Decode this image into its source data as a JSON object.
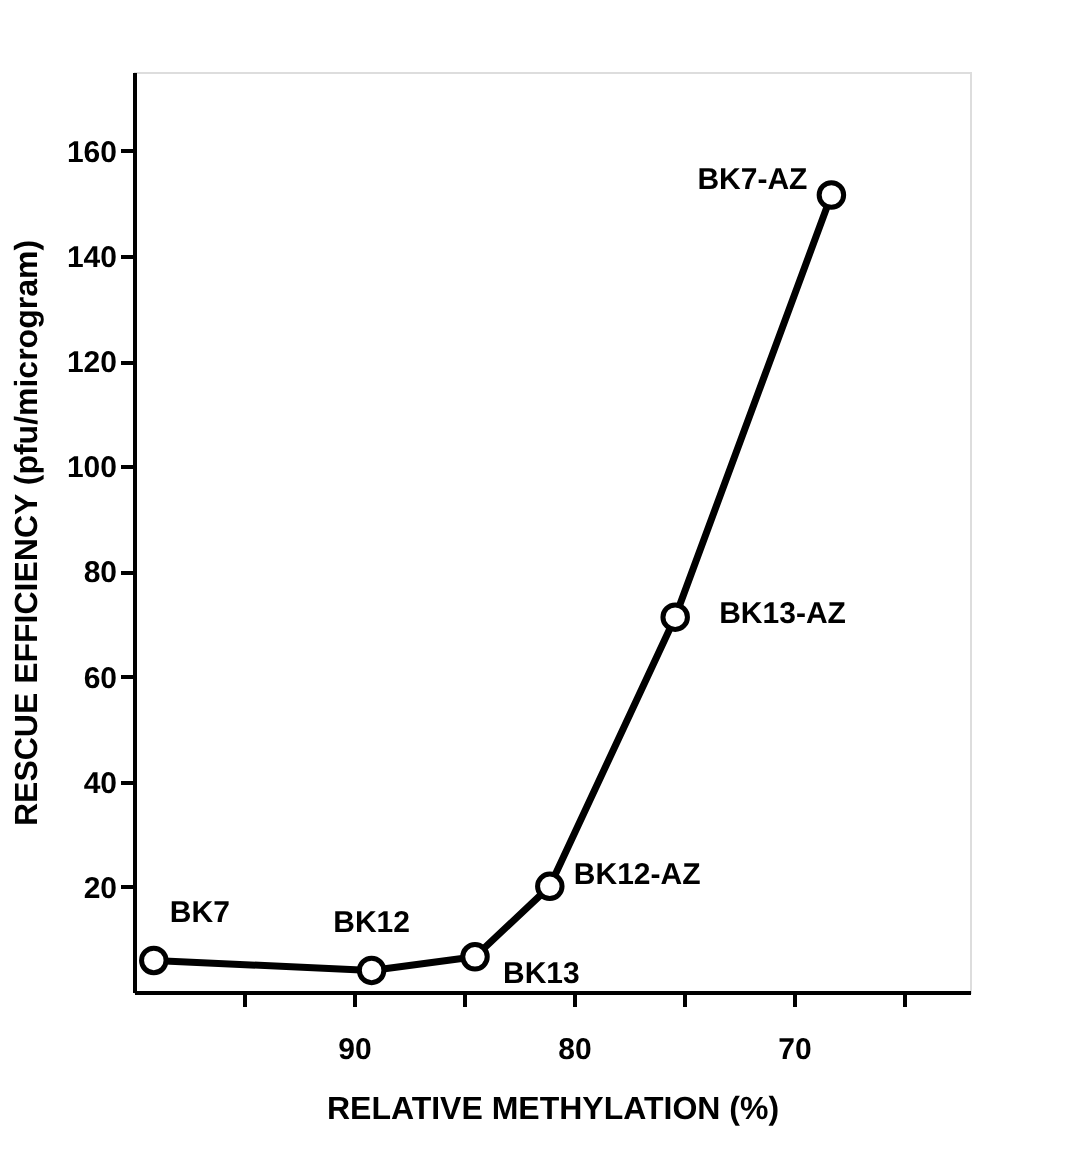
{
  "chart_data": {
    "type": "line",
    "xlabel": "RELATIVE METHYLATION (%)",
    "ylabel": "RESCUE EFFICIENCY  (pfu/microgram)",
    "x": [
      99.1,
      89.2,
      84.5,
      81.1,
      75.4,
      68.3
    ],
    "series": [
      {
        "color": "#000000",
        "values": [
          6.0,
          4.1,
          6.7,
          20.1,
          71.3,
          151.6
        ]
      }
    ],
    "xlim": [
      100,
      62
    ],
    "xticks": [
      {
        "value": 95,
        "label": null
      },
      90,
      {
        "value": 85,
        "label": null
      },
      80,
      {
        "value": 75,
        "label": null
      },
      70,
      {
        "value": 65,
        "label": null
      }
    ],
    "ylim": [
      0,
      175
    ],
    "yticks": [
      20,
      40,
      60,
      80,
      100,
      120,
      140,
      160
    ],
    "marker": "circle",
    "line_style": "solid",
    "grid": false,
    "annotations": [
      {
        "text": "BK7",
        "x": 99.1,
        "y": 6.0
      },
      {
        "text": "BK12",
        "x": 89.2,
        "y": 4.1
      },
      {
        "text": "BK13",
        "x": 84.5,
        "y": 6.7
      },
      {
        "text": "BK12-AZ",
        "x": 81.1,
        "y": 20.1
      },
      {
        "text": "BK13-AZ",
        "x": 75.4,
        "y": 71.3
      },
      {
        "text": "BK7-AZ",
        "x": 68.3,
        "y": 151.6
      }
    ]
  }
}
